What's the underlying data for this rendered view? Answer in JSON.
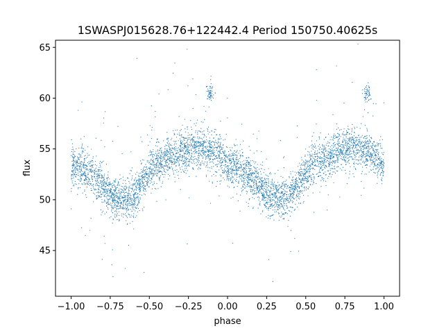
{
  "chart_data": {
    "type": "scatter",
    "title": "1SWASPJ015628.76+122442.4 Period 150750.40625s",
    "xlabel": "phase",
    "ylabel": "flux",
    "xlim": [
      -1.1,
      1.1
    ],
    "ylim": [
      40.5,
      65.7
    ],
    "xticks": [
      -1.0,
      -0.75,
      -0.5,
      -0.25,
      0.0,
      0.25,
      0.5,
      0.75,
      1.0
    ],
    "xtick_labels": [
      "−1.00",
      "−0.75",
      "−0.50",
      "−0.25",
      "0.00",
      "0.25",
      "0.50",
      "0.75",
      "1.00"
    ],
    "yticks": [
      45,
      50,
      55,
      60,
      65
    ],
    "ytick_labels": [
      "45",
      "50",
      "55",
      "60",
      "65"
    ],
    "grid": false,
    "marker_color": "#1f77b4",
    "series": [
      {
        "phase": [
          -1.0,
          -0.95,
          -0.9,
          -0.85,
          -0.8,
          -0.75,
          -0.7,
          -0.65,
          -0.6,
          -0.55,
          -0.5,
          -0.45,
          -0.4,
          -0.35,
          -0.3,
          -0.25,
          -0.2,
          -0.15,
          -0.1,
          -0.05,
          0.0,
          0.05,
          0.1,
          0.15,
          0.2,
          0.25,
          0.3,
          0.35,
          0.4,
          0.45,
          0.5,
          0.55,
          0.6,
          0.65,
          0.7,
          0.75,
          0.8,
          0.85,
          0.9,
          0.95,
          1.0
        ],
        "flux_median": [
          53.2,
          53.3,
          52.9,
          52.3,
          51.4,
          50.5,
          50.1,
          50.0,
          50.3,
          51.5,
          52.8,
          53.5,
          53.9,
          54.3,
          54.8,
          55.0,
          55.1,
          55.0,
          54.8,
          54.3,
          53.2,
          53.3,
          52.9,
          52.3,
          51.4,
          50.5,
          50.1,
          50.0,
          50.3,
          51.5,
          52.8,
          53.5,
          53.9,
          54.3,
          54.8,
          55.0,
          55.1,
          55.0,
          54.8,
          54.3,
          53.2
        ],
        "flux_scatter": 1.0,
        "outlier_clumps": [
          {
            "phase": -0.11,
            "flux": 60.5
          },
          {
            "phase": 0.89,
            "flux": 60.5
          }
        ]
      }
    ]
  }
}
